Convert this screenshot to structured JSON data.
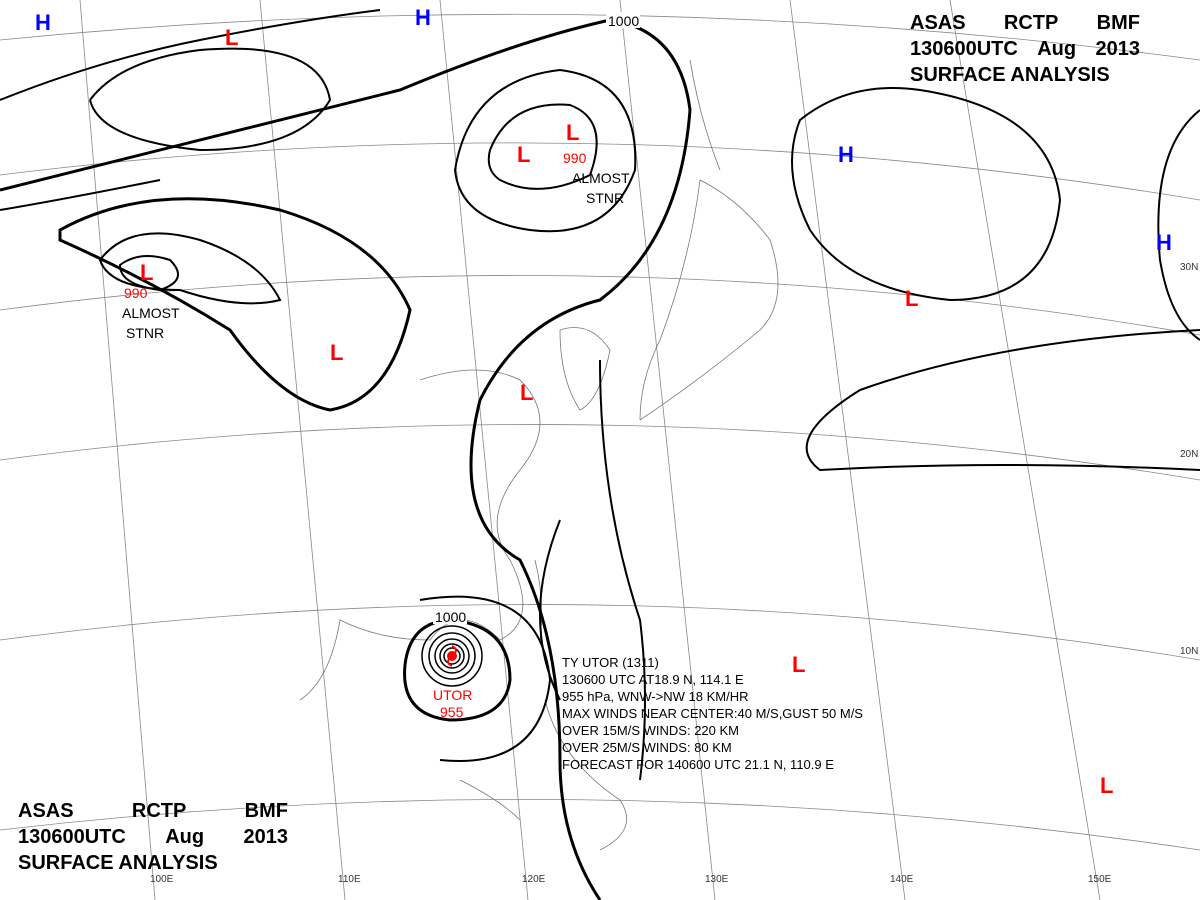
{
  "header": {
    "line1": [
      "ASAS",
      "RCTP",
      "BMF"
    ],
    "line2": [
      "130600UTC",
      "Aug",
      "2013"
    ],
    "line3": "SURFACE ANALYSIS"
  },
  "lon_labels": [
    "100E",
    "110E",
    "120E",
    "130E",
    "140E",
    "150E"
  ],
  "lat_labels": [
    "30N",
    "20N",
    "10N"
  ],
  "colors": {
    "low": "#ff0000",
    "high": "#0000ff",
    "isobar": "#000000",
    "grid": "#888888"
  },
  "pressure_systems": [
    {
      "type": "H"
    },
    {
      "type": "H"
    },
    {
      "type": "L"
    },
    {
      "type": "L",
      "value": "990",
      "note": [
        "ALMOST",
        "STNR"
      ]
    },
    {
      "type": "L"
    },
    {
      "type": "H"
    },
    {
      "type": "H"
    },
    {
      "type": "L"
    },
    {
      "type": "L",
      "value": "990",
      "note": [
        "ALMOST",
        "STNR"
      ]
    },
    {
      "type": "L"
    },
    {
      "type": "L"
    },
    {
      "type": "L"
    },
    {
      "type": "L"
    }
  ],
  "isobar_labels": [
    "1000",
    "1000"
  ],
  "typhoon": {
    "name": "UTOR",
    "pressure": "955",
    "info": [
      "TY  UTOR  (1311)",
      "130600 UTC  AT18.9 N, 114.1 E",
      "955 hPa, WNW->NW  18 KM/HR",
      "MAX WINDS NEAR CENTER:40 M/S,GUST 50 M/S",
      "OVER 15M/S WINDS: 220 KM",
      "OVER 25M/S WINDS: 80 KM",
      "FORECAST FOR 140600 UTC 21.1 N, 110.9 E"
    ]
  }
}
